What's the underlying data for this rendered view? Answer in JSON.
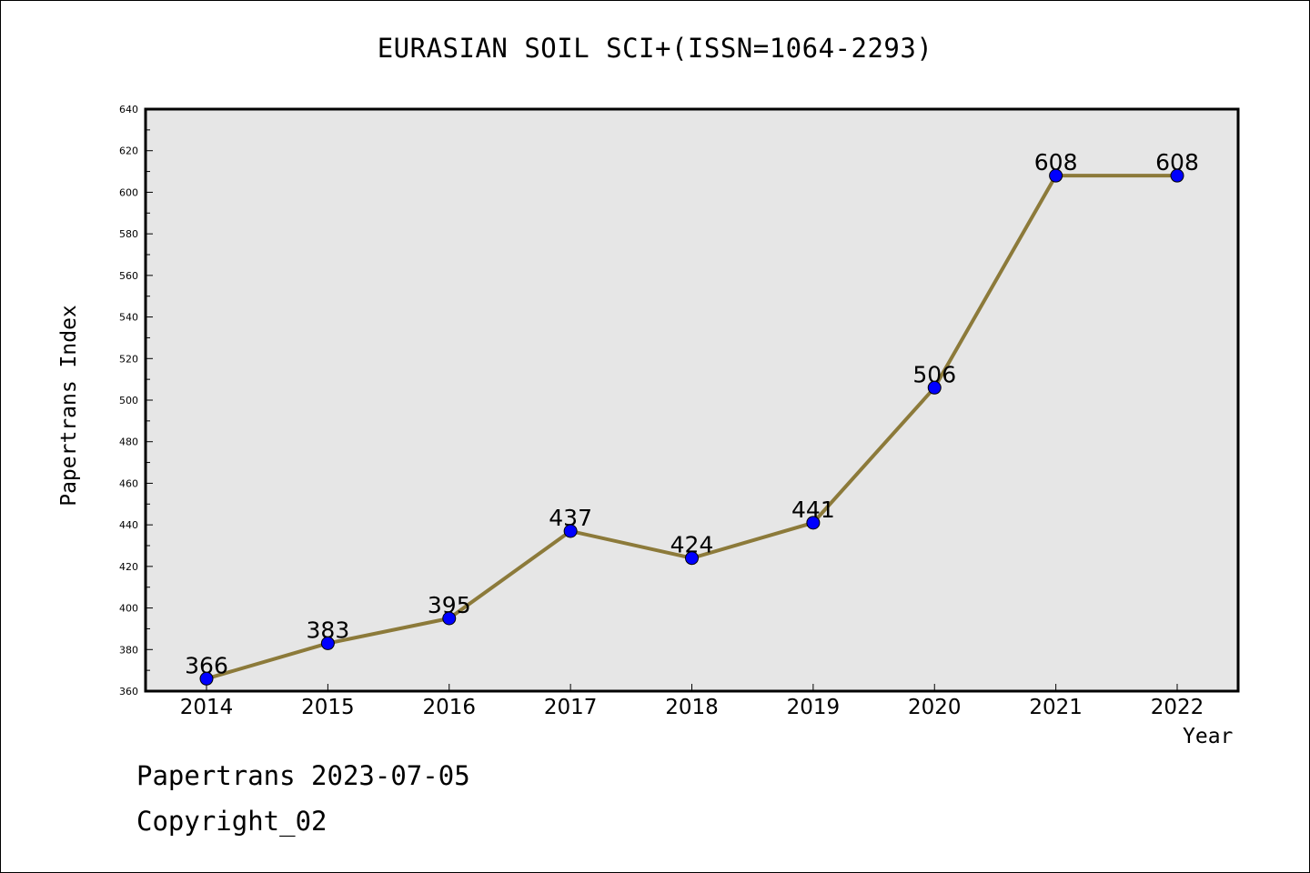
{
  "chart_data": {
    "type": "line",
    "title": "EURASIAN SOIL SCI+(ISSN=1064-2293)",
    "xlabel": "Year",
    "ylabel": "Papertrans Index",
    "categories": [
      "2014",
      "2015",
      "2016",
      "2017",
      "2018",
      "2019",
      "2020",
      "2021",
      "2022"
    ],
    "series": [
      {
        "values": [
          366,
          383,
          395,
          437,
          424,
          441,
          506,
          608,
          608
        ],
        "line_color": "#8c7a3a",
        "marker_color": "#0000ff"
      }
    ],
    "ylim": [
      360,
      640
    ],
    "yticks": [
      360,
      380,
      400,
      420,
      440,
      460,
      480,
      500,
      520,
      540,
      560,
      580,
      600,
      620,
      640
    ],
    "grid": false,
    "legend": "none",
    "background": "#e6e6e6"
  },
  "footer": {
    "line1": "Papertrans 2023-07-05",
    "line2": "Copyright_02"
  }
}
